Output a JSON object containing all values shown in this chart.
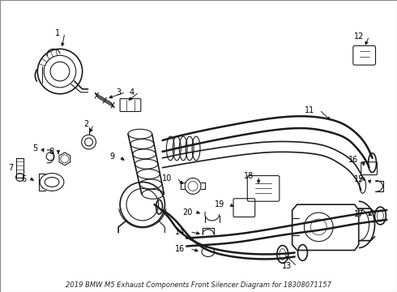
{
  "title": "2019 BMW M5 Exhaust Components Front Silencer Diagram for 18308071157",
  "bg": "#ffffff",
  "lc": "#1a1a1a",
  "figsize": [
    4.9,
    3.6
  ],
  "dpi": 100,
  "border_color": "#aaaaaa"
}
